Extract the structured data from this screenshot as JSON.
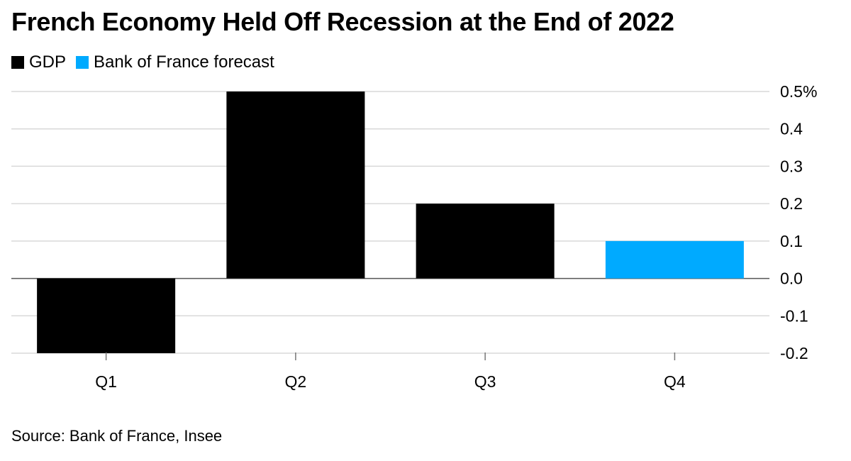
{
  "title": "French Economy Held Off Recession at the End of 2022",
  "legend": [
    {
      "label": "GDP",
      "color": "#000000"
    },
    {
      "label": "Bank of France forecast",
      "color": "#00aaff"
    }
  ],
  "source": "Source: Bank of France, Insee",
  "chart_data": {
    "type": "bar",
    "title": "French Economy Held Off Recession at the End of 2022",
    "categories": [
      "Q1",
      "Q2",
      "Q3",
      "Q4"
    ],
    "series": [
      {
        "name": "GDP",
        "values": [
          -0.2,
          0.5,
          0.2,
          null
        ],
        "color": "#000000"
      },
      {
        "name": "Bank of France forecast",
        "values": [
          null,
          null,
          null,
          0.1
        ],
        "color": "#00aaff"
      }
    ],
    "ylim": [
      -0.2,
      0.5
    ],
    "yticks": [
      -0.2,
      -0.1,
      0.0,
      0.1,
      0.2,
      0.3,
      0.4,
      0.5
    ],
    "ytick_labels": [
      "-0.2",
      "-0.1",
      "0.0",
      "0.1",
      "0.2",
      "0.3",
      "0.4",
      "0.5%"
    ],
    "xlabel": "",
    "ylabel": "",
    "grid": true,
    "legend_position": "top-left",
    "axis_position": "right"
  }
}
